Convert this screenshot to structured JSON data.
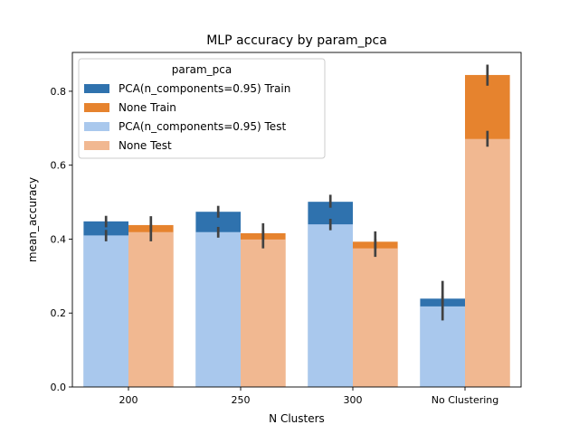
{
  "chart_data": {
    "type": "bar",
    "title": "MLP accuracy by param_pca",
    "xlabel": "N Clusters",
    "ylabel": "mean_accuracy",
    "categories": [
      "200",
      "250",
      "300",
      "No Clustering"
    ],
    "ylim": [
      0,
      0.905
    ],
    "yticks": [
      0.0,
      0.2,
      0.4,
      0.6,
      0.8
    ],
    "ytick_labels": [
      "0.0",
      "0.2",
      "0.4",
      "0.6",
      "0.8"
    ],
    "legend_title": "param_pca",
    "legend_position": "top-left",
    "grid": false,
    "series": [
      {
        "name": "PCA(n_components=0.95) Train",
        "color": "#2f72ae",
        "group": 0,
        "values": [
          0.448,
          0.474,
          0.501,
          0.239
        ],
        "ci": [
          [
            0.432,
            0.463
          ],
          [
            0.458,
            0.49
          ],
          [
            0.485,
            0.52
          ],
          [
            0.222,
            0.287
          ]
        ]
      },
      {
        "name": "None Train",
        "color": "#e6832e",
        "group": 1,
        "values": [
          0.438,
          0.416,
          0.393,
          0.844
        ],
        "ci": [
          [
            0.42,
            0.462
          ],
          [
            0.398,
            0.443
          ],
          [
            0.373,
            0.421
          ],
          [
            0.815,
            0.872
          ]
        ]
      },
      {
        "name": "PCA(n_components=0.95) Test",
        "color": "#a9c8ed",
        "group": 0,
        "values": [
          0.41,
          0.419,
          0.44,
          0.218
        ],
        "ci": [
          [
            0.394,
            0.425
          ],
          [
            0.404,
            0.433
          ],
          [
            0.424,
            0.455
          ],
          [
            0.18,
            0.246
          ]
        ]
      },
      {
        "name": "None Test",
        "color": "#f1b891",
        "group": 1,
        "values": [
          0.419,
          0.399,
          0.375,
          0.671
        ],
        "ci": [
          [
            0.394,
            0.44
          ],
          [
            0.375,
            0.423
          ],
          [
            0.352,
            0.4
          ],
          [
            0.65,
            0.693
          ]
        ]
      }
    ]
  }
}
